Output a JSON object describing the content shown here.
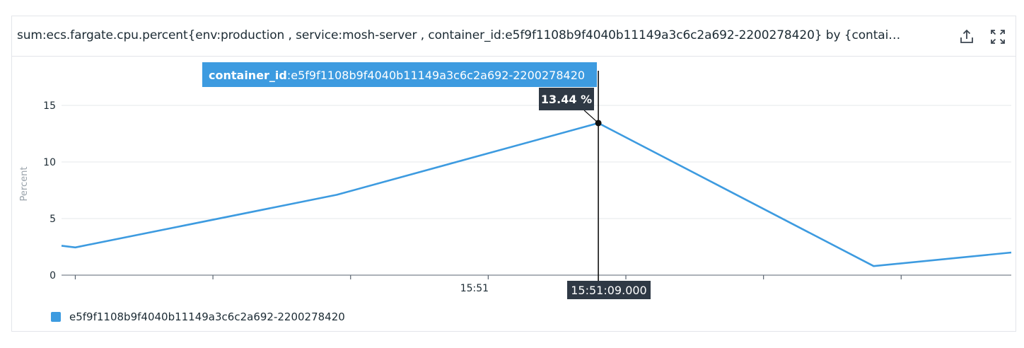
{
  "widget": {
    "title": "sum:ecs.fargate.cpu.percent{env:production , service:mosh-server , container_id:e5f9f1108b9f4040b11149a3c6c2a692-2200278420} by {contai…",
    "export_icon": "share-export-icon",
    "expand_icon": "expand-fullscreen-icon"
  },
  "colors": {
    "series": "#3d9be0",
    "tooltip_bg": "#2f3945",
    "grid": "#e6e8eb",
    "axis": "#5a6470"
  },
  "tooltip": {
    "tag_key": "container_id",
    "tag_value": ":e5f9f1108b9f4040b11149a3c6c2a692-2200278420",
    "value": "13.44 %",
    "time": "15:51:09.000"
  },
  "legend": {
    "label": "e5f9f1108b9f4040b11149a3c6c2a692-2200278420"
  },
  "chart_data": {
    "type": "line",
    "ylabel": "Percent",
    "ylim": [
      0,
      18.7
    ],
    "yticks": [
      0,
      5,
      10,
      15
    ],
    "x_tick_label": "15:51",
    "grid": true,
    "series": [
      {
        "name": "e5f9f1108b9f4040b11149a3c6c2a692-2200278420",
        "points": [
          {
            "t": "15:50:30",
            "y": 2.6
          },
          {
            "t": "15:50:31",
            "y": 2.45
          },
          {
            "t": "15:50:50",
            "y": 7.1
          },
          {
            "t": "15:51:09",
            "y": 13.44
          },
          {
            "t": "15:51:29",
            "y": 0.8
          },
          {
            "t": "15:51:39",
            "y": 2.0
          }
        ]
      }
    ]
  }
}
